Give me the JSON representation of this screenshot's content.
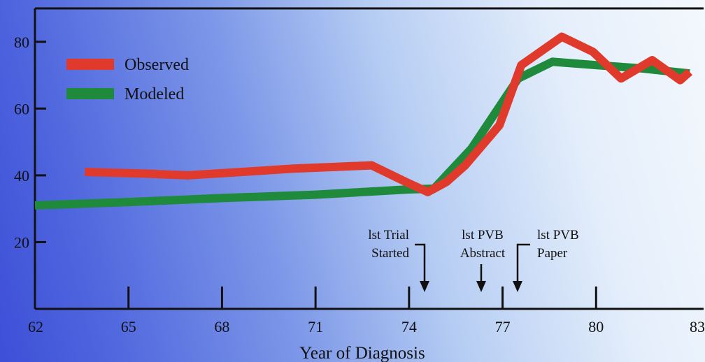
{
  "colors": {
    "observed": "#e03a2c",
    "modeled": "#1f8a3c",
    "axis": "#111111"
  },
  "chart_data": {
    "type": "line",
    "title": "",
    "xlabel": "Year of Diagnosis",
    "ylabel": "",
    "xlim": [
      62,
      83
    ],
    "ylim": [
      0,
      90
    ],
    "x_ticks": [
      {
        "value": 62,
        "label": "62"
      },
      {
        "value": 65,
        "label": "65"
      },
      {
        "value": 68,
        "label": "68"
      },
      {
        "value": 71,
        "label": "71"
      },
      {
        "value": 74,
        "label": "74"
      },
      {
        "value": 77,
        "label": "77"
      },
      {
        "value": 80,
        "label": "80"
      },
      {
        "value": 83,
        "label": "83"
      }
    ],
    "y_ticks": [
      {
        "value": 20,
        "label": "20"
      },
      {
        "value": 40,
        "label": "40"
      },
      {
        "value": 60,
        "label": "60"
      },
      {
        "value": 80,
        "label": "80"
      }
    ],
    "legend_position": "top-left",
    "grid": false,
    "series": [
      {
        "name": "Observed",
        "color": "#e03a2c",
        "points": [
          [
            63.6,
            41
          ],
          [
            65.6,
            40.5
          ],
          [
            66.9,
            40
          ],
          [
            68.6,
            41
          ],
          [
            70.3,
            42
          ],
          [
            71.6,
            42.5
          ],
          [
            72.8,
            43
          ],
          [
            73.9,
            38
          ],
          [
            74.6,
            35
          ],
          [
            75.2,
            38
          ],
          [
            75.8,
            43
          ],
          [
            76.9,
            55
          ],
          [
            77.6,
            73
          ],
          [
            78.9,
            81.5
          ],
          [
            79.9,
            77
          ],
          [
            80.8,
            69
          ],
          [
            81.8,
            74.5
          ],
          [
            82.7,
            68.5
          ],
          [
            83,
            71
          ]
        ]
      },
      {
        "name": "Modeled",
        "color": "#1f8a3c",
        "points": [
          [
            62,
            31
          ],
          [
            65,
            32
          ],
          [
            68,
            33.2
          ],
          [
            71,
            34.2
          ],
          [
            74,
            35.8
          ],
          [
            74.8,
            36
          ],
          [
            76,
            48
          ],
          [
            77.5,
            69
          ],
          [
            78.6,
            74
          ],
          [
            80,
            73
          ],
          [
            81.5,
            72
          ],
          [
            83,
            70.5
          ]
        ]
      }
    ],
    "annotations": [
      {
        "id": "trial",
        "lines": [
          "lst Trial",
          "Started"
        ],
        "x": 74.5
      },
      {
        "id": "abstract",
        "lines": [
          "lst PVB",
          "Abstract"
        ],
        "x": 76.5
      },
      {
        "id": "paper",
        "lines": [
          "lst PVB",
          "Paper"
        ],
        "x": 77.5
      }
    ]
  }
}
